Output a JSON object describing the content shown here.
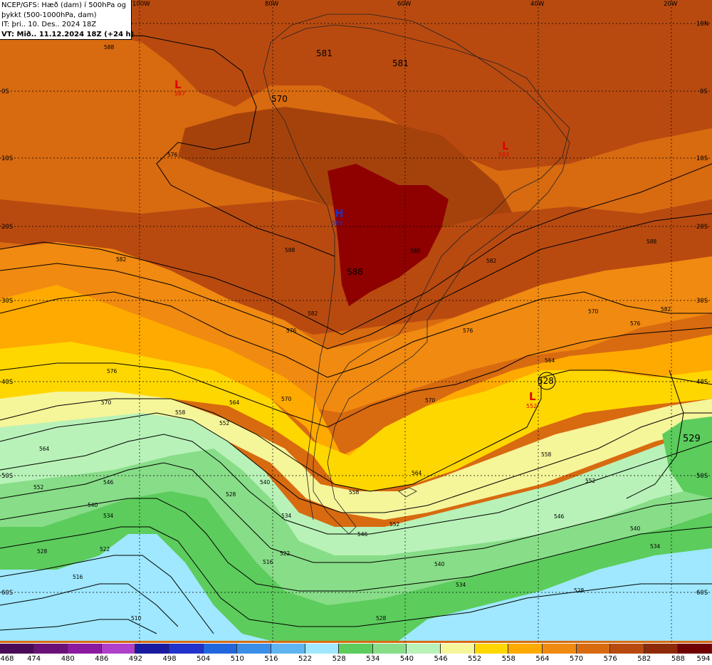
{
  "header": {
    "line1": "NCEP/GFS: Hæð (dam) í 500hPa og",
    "line2": "þykkt (500-1000hPa, dam)",
    "line3": "IT: þri.. 10. Des.. 2024 18Z",
    "line4": "VT: Mið.. 11.12.2024 18Z (+24 h)"
  },
  "lon_labels": [
    "100W",
    "80W",
    "60W",
    "40W",
    "20W"
  ],
  "lat_labels": [
    "10N",
    "0S",
    "10S",
    "20S",
    "30S",
    "40S",
    "50S",
    "60S"
  ],
  "contour_labels": [
    "588",
    "581",
    "581",
    "570",
    "576",
    "582",
    "588",
    "582",
    "576",
    "570",
    "564",
    "558",
    "552",
    "546",
    "540",
    "534",
    "528",
    "522",
    "516",
    "510",
    "576",
    "570",
    "564",
    "558",
    "552",
    "546",
    "540",
    "534",
    "528",
    "582",
    "588",
    "576",
    "570",
    "528",
    "588"
  ],
  "field_labels": {
    "f1": "581",
    "f2": "581",
    "f3": "570",
    "f4": "588",
    "f5": "528",
    "f6": "529"
  },
  "systems": {
    "low1": {
      "letter": "L",
      "value": "587"
    },
    "low2": {
      "letter": "L",
      "value": "583"
    },
    "high1": {
      "letter": "H",
      "value": "589"
    },
    "low3": {
      "letter": "L",
      "value": "552"
    }
  },
  "colorbar": {
    "levels": [
      "468",
      "474",
      "480",
      "486",
      "492",
      "498",
      "504",
      "510",
      "516",
      "522",
      "528",
      "534",
      "540",
      "546",
      "552",
      "558",
      "564",
      "570",
      "576",
      "582",
      "588",
      "594"
    ],
    "colors": [
      "#4b0a55",
      "#6a1178",
      "#8c1a9e",
      "#b03fc9",
      "#1a1aa0",
      "#2233cc",
      "#2266dd",
      "#3a8ee8",
      "#60b4f0",
      "#9fe8ff",
      "#5ccc5c",
      "#88dd88",
      "#b8f2b8",
      "#f5f59a",
      "#ffd700",
      "#ffaa00",
      "#f08a10",
      "#d86a10",
      "#b84a10",
      "#8f2a08",
      "#6f0000"
    ]
  },
  "field_colors": {
    "lightblue": "#9fe8ff",
    "green": "#5ccc5c",
    "lightgreen": "#88dd88",
    "palegreen": "#b8f2b8",
    "yellow": "#f5f59a",
    "gold": "#ffd700",
    "orange": "#ffaa00",
    "darkorange": "#f08a10",
    "brown1": "#d86a10",
    "brown2": "#b84a10",
    "brown3": "#a5420c",
    "darkred": "#8f0000"
  }
}
